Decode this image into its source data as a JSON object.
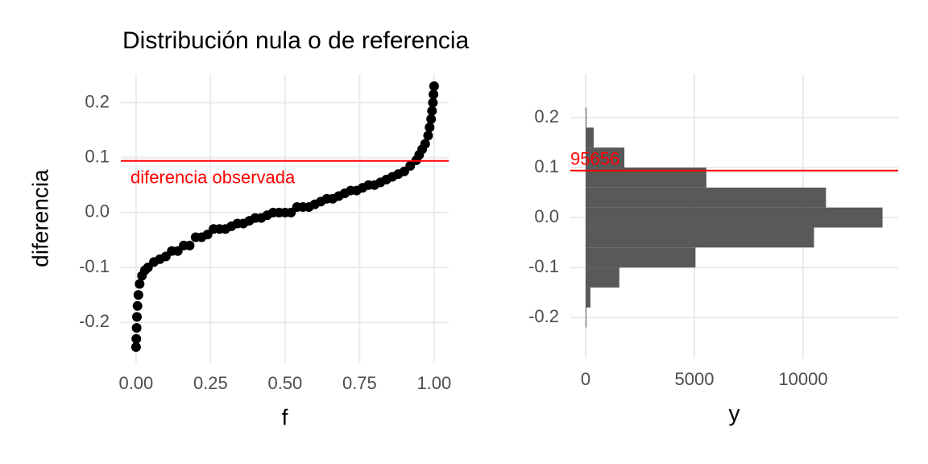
{
  "title": "Distribución nula o de referencia",
  "chart_data": [
    {
      "type": "scatter",
      "x_label": "f",
      "y_label": "diferencia",
      "color": "#000000",
      "grid": true,
      "xlim": [
        -0.051,
        1.049
      ],
      "ylim": [
        -0.273,
        0.252
      ],
      "xticks": [
        {
          "value": 0,
          "label": "0.00"
        },
        {
          "value": 0.25,
          "label": "0.25"
        },
        {
          "value": 0.5,
          "label": "0.50"
        },
        {
          "value": 0.75,
          "label": "0.75"
        },
        {
          "value": 1,
          "label": "1.00"
        }
      ],
      "yticks": [
        -0.2,
        -0.1,
        {
          "value": 0,
          "label": "0.0"
        },
        0.1,
        0.2
      ],
      "x": [
        0,
        0.001,
        0.002,
        0.003,
        0.005,
        0.008,
        0.012,
        0.02,
        0.03,
        0.04,
        0.06,
        0.08,
        0.1,
        0.12,
        0.14,
        0.16,
        0.18,
        0.2,
        0.22,
        0.24,
        0.26,
        0.28,
        0.3,
        0.32,
        0.34,
        0.36,
        0.38,
        0.4,
        0.42,
        0.44,
        0.46,
        0.48,
        0.5,
        0.52,
        0.54,
        0.56,
        0.58,
        0.6,
        0.62,
        0.64,
        0.66,
        0.68,
        0.7,
        0.72,
        0.74,
        0.76,
        0.78,
        0.8,
        0.82,
        0.84,
        0.86,
        0.88,
        0.9,
        0.92,
        0.94,
        0.95,
        0.96,
        0.97,
        0.98,
        0.985,
        0.99,
        0.993,
        0.996,
        0.998,
        1
      ],
      "values": [
        -0.245,
        -0.23,
        -0.21,
        -0.19,
        -0.17,
        -0.15,
        -0.13,
        -0.115,
        -0.105,
        -0.1,
        -0.09,
        -0.085,
        -0.08,
        -0.07,
        -0.07,
        -0.06,
        -0.06,
        -0.045,
        -0.045,
        -0.04,
        -0.03,
        -0.03,
        -0.03,
        -0.025,
        -0.02,
        -0.02,
        -0.015,
        -0.01,
        -0.01,
        -0.005,
        0,
        0,
        0,
        0,
        0.01,
        0.01,
        0.01,
        0.015,
        0.02,
        0.025,
        0.025,
        0.03,
        0.035,
        0.04,
        0.04,
        0.045,
        0.05,
        0.05,
        0.055,
        0.06,
        0.065,
        0.07,
        0.075,
        0.085,
        0.095,
        0.105,
        0.115,
        0.125,
        0.14,
        0.155,
        0.17,
        0.185,
        0.2,
        0.215,
        0.23
      ],
      "hline": {
        "value": 0.094,
        "label": "diferencia observada",
        "color": "#ff0000"
      }
    },
    {
      "type": "histogram",
      "orientation": "horizontal",
      "x_label": "y",
      "color": "#595959",
      "grid": true,
      "xlim": [
        -704,
        14370
      ],
      "ylim": [
        -0.282,
        0.287
      ],
      "xticks": [
        0,
        5000,
        10000
      ],
      "yticks": [
        -0.2,
        -0.1,
        {
          "value": 0,
          "label": "0.0"
        },
        0.1,
        0.2
      ],
      "bins": [
        -0.22,
        -0.18,
        -0.14,
        -0.1,
        -0.06,
        -0.02,
        0.02,
        0.06,
        0.1,
        0.14,
        0.18,
        0.22
      ],
      "values": [
        20,
        220,
        1550,
        5050,
        10500,
        13650,
        11050,
        5550,
        1780,
        370,
        40
      ],
      "hline": {
        "value": 0.094,
        "label": "95656",
        "color": "#ff0000"
      }
    }
  ]
}
